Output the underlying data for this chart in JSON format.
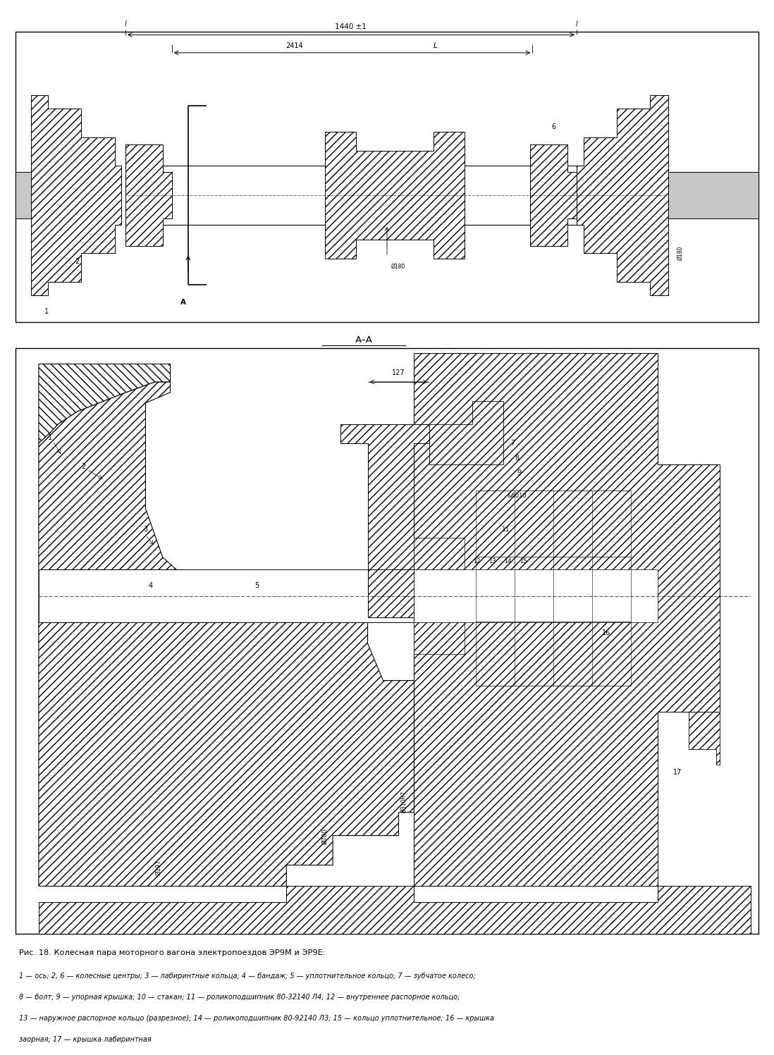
{
  "bg_color": "#ffffff",
  "fig_width": 10.98,
  "fig_height": 14.97,
  "title_line1": "Рис. 18. Колесная пара моторного вагона электропоездов ЭР9М и ЭР9Е:",
  "caption_line2": "1 — ось; 2, 6 — колесные центры; 3 — лабиринтные кольца; 4 — бандаж; 5 — уплотнительное кольцо; 7 — зубчатое колесо;",
  "caption_line3": "8 — болт; 9 — упорная крышка; 10 — стакан; 11 — роликоподшипник 80-32140 Л4; 12 — внутреннее распорное кольцо;",
  "caption_line4": "13 — наружное распорное кольцо (разрезное); 14 — роликоподшипник 80-92140 Л3; 15 — кольцо уплотнительное; 16 — крышка",
  "caption_line5": "заорная; 17 — крышка лабиринтная",
  "dim_1440": "1440 ±1",
  "dim_2414": "2414",
  "dim_L": "L",
  "dim_127": "127",
  "dim_phi180": "Ø180",
  "dim_phi197": "Ø197",
  "dim_phi700": "Ø700",
  "dim_phi310": "Ø310Н7",
  "section_label": "А–А"
}
